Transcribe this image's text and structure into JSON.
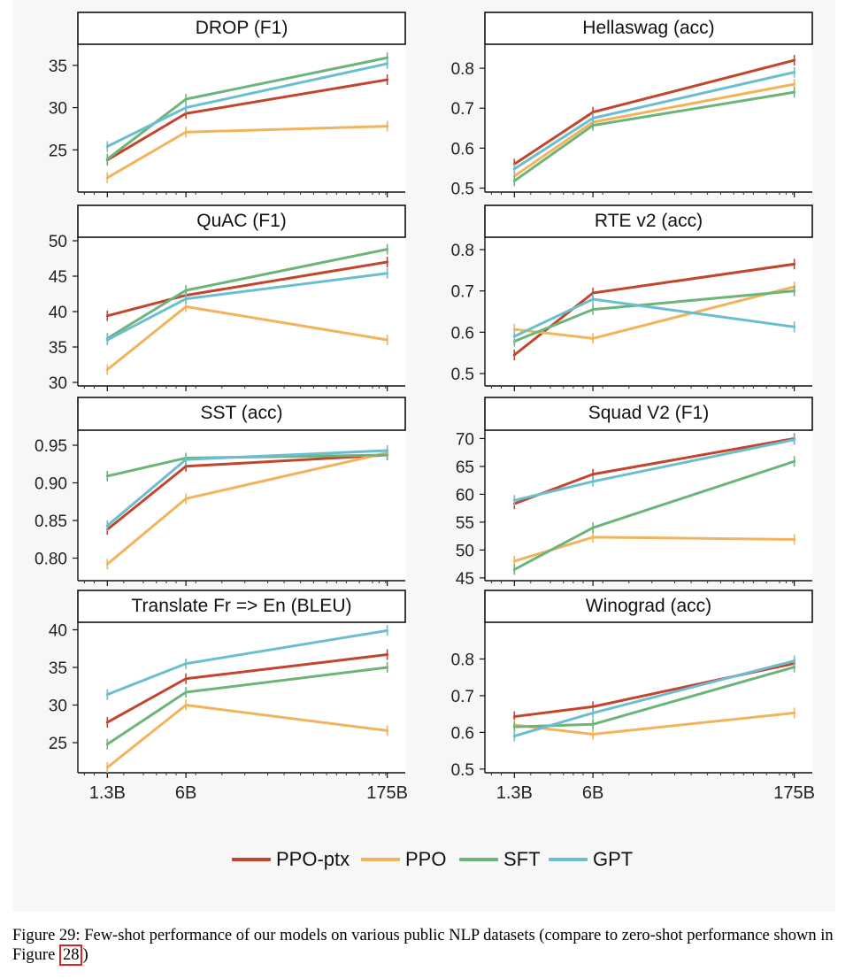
{
  "chart_data": [
    {
      "type": "line",
      "title": "DROP (F1)",
      "x": [
        "1.3B",
        "6B",
        "175B"
      ],
      "ylim": [
        20,
        37.5
      ],
      "yticks": [
        25,
        30,
        35
      ],
      "ytick_labels": [
        "25",
        "30",
        "35"
      ],
      "show_x_labels": false,
      "series": [
        {
          "name": "PPO-ptx",
          "values": [
            23.8,
            29.3,
            33.3
          ]
        },
        {
          "name": "PPO",
          "values": [
            21.7,
            27.1,
            27.8
          ]
        },
        {
          "name": "SFT",
          "values": [
            23.9,
            31.0,
            35.9
          ]
        },
        {
          "name": "GPT",
          "values": [
            25.4,
            30.0,
            35.2
          ]
        }
      ]
    },
    {
      "type": "line",
      "title": "Hellaswag (acc)",
      "x": [
        "1.3B",
        "6B",
        "175B"
      ],
      "ylim": [
        0.49,
        0.86
      ],
      "yticks": [
        0.5,
        0.6,
        0.7,
        0.8
      ],
      "ytick_labels": [
        "0.5",
        "0.6",
        "0.7",
        "0.8"
      ],
      "show_x_labels": false,
      "series": [
        {
          "name": "PPO-ptx",
          "values": [
            0.56,
            0.69,
            0.82
          ]
        },
        {
          "name": "PPO",
          "values": [
            0.53,
            0.665,
            0.76
          ]
        },
        {
          "name": "SFT",
          "values": [
            0.518,
            0.657,
            0.74
          ]
        },
        {
          "name": "GPT",
          "values": [
            0.548,
            0.675,
            0.79
          ]
        }
      ]
    },
    {
      "type": "line",
      "title": "QuAC (F1)",
      "x": [
        "1.3B",
        "6B",
        "175B"
      ],
      "ylim": [
        29.5,
        50.5
      ],
      "yticks": [
        30,
        35,
        40,
        45,
        50
      ],
      "ytick_labels": [
        "30",
        "35",
        "40",
        "45",
        "50"
      ],
      "show_x_labels": false,
      "series": [
        {
          "name": "PPO-ptx",
          "values": [
            39.4,
            42.3,
            47.0
          ]
        },
        {
          "name": "PPO",
          "values": [
            31.8,
            40.7,
            36.0
          ]
        },
        {
          "name": "SFT",
          "values": [
            36.2,
            43.0,
            48.8
          ]
        },
        {
          "name": "GPT",
          "values": [
            36.0,
            41.8,
            45.4
          ]
        }
      ]
    },
    {
      "type": "line",
      "title": "RTE v2 (acc)",
      "x": [
        "1.3B",
        "6B",
        "175B"
      ],
      "ylim": [
        0.47,
        0.83
      ],
      "yticks": [
        0.5,
        0.6,
        0.7,
        0.8
      ],
      "ytick_labels": [
        "0.5",
        "0.6",
        "0.7",
        "0.8"
      ],
      "show_x_labels": false,
      "series": [
        {
          "name": "PPO-ptx",
          "values": [
            0.545,
            0.695,
            0.765
          ]
        },
        {
          "name": "PPO",
          "values": [
            0.607,
            0.585,
            0.71
          ]
        },
        {
          "name": "SFT",
          "values": [
            0.578,
            0.655,
            0.7
          ]
        },
        {
          "name": "GPT",
          "values": [
            0.59,
            0.68,
            0.613
          ]
        }
      ]
    },
    {
      "type": "line",
      "title": "SST (acc)",
      "x": [
        "1.3B",
        "6B",
        "175B"
      ],
      "ylim": [
        0.77,
        0.97
      ],
      "yticks": [
        0.8,
        0.85,
        0.9,
        0.95
      ],
      "ytick_labels": [
        "0.80",
        "0.85",
        "0.90",
        "0.95"
      ],
      "show_x_labels": false,
      "series": [
        {
          "name": "PPO-ptx",
          "values": [
            0.838,
            0.922,
            0.937
          ]
        },
        {
          "name": "PPO",
          "values": [
            0.792,
            0.879,
            0.94
          ]
        },
        {
          "name": "SFT",
          "values": [
            0.909,
            0.933,
            0.937
          ]
        },
        {
          "name": "GPT",
          "values": [
            0.843,
            0.931,
            0.943
          ]
        }
      ]
    },
    {
      "type": "line",
      "title": "Squad V2 (F1)",
      "x": [
        "1.3B",
        "6B",
        "175B"
      ],
      "ylim": [
        44.5,
        71.5
      ],
      "yticks": [
        45,
        50,
        55,
        60,
        65,
        70
      ],
      "ytick_labels": [
        "45",
        "50",
        "55",
        "60",
        "65",
        "70"
      ],
      "show_x_labels": false,
      "series": [
        {
          "name": "PPO-ptx",
          "values": [
            58.3,
            63.6,
            70.0
          ]
        },
        {
          "name": "PPO",
          "values": [
            48.0,
            52.3,
            51.9
          ]
        },
        {
          "name": "SFT",
          "values": [
            46.5,
            54.0,
            65.9
          ]
        },
        {
          "name": "GPT",
          "values": [
            58.9,
            62.3,
            69.8
          ]
        }
      ]
    },
    {
      "type": "line",
      "title": "Translate Fr => En (BLEU)",
      "x": [
        "1.3B",
        "6B",
        "175B"
      ],
      "ylim": [
        21,
        41
      ],
      "yticks": [
        25,
        30,
        35,
        40
      ],
      "ytick_labels": [
        "25",
        "30",
        "35",
        "40"
      ],
      "show_x_labels": true,
      "series": [
        {
          "name": "PPO-ptx",
          "values": [
            27.7,
            33.5,
            36.7
          ]
        },
        {
          "name": "PPO",
          "values": [
            21.7,
            30.0,
            26.6
          ]
        },
        {
          "name": "SFT",
          "values": [
            24.8,
            31.7,
            35.0
          ]
        },
        {
          "name": "GPT",
          "values": [
            31.4,
            35.5,
            39.9
          ]
        }
      ]
    },
    {
      "type": "line",
      "title": "Winograd (acc)",
      "x": [
        "1.3B",
        "6B",
        "175B"
      ],
      "ylim": [
        0.49,
        0.9
      ],
      "yticks": [
        0.5,
        0.6,
        0.7,
        0.8
      ],
      "ytick_labels": [
        "0.5",
        "0.6",
        "0.7",
        "0.8"
      ],
      "show_x_labels": true,
      "series": [
        {
          "name": "PPO-ptx",
          "values": [
            0.643,
            0.67,
            0.788
          ]
        },
        {
          "name": "PPO",
          "values": [
            0.62,
            0.595,
            0.653
          ]
        },
        {
          "name": "SFT",
          "values": [
            0.615,
            0.622,
            0.778
          ]
        },
        {
          "name": "GPT",
          "values": [
            0.59,
            0.653,
            0.795
          ]
        }
      ]
    }
  ],
  "legend": [
    {
      "name": "PPO-ptx",
      "color": "#c2452c"
    },
    {
      "name": "PPO",
      "color": "#f2b35a"
    },
    {
      "name": "SFT",
      "color": "#6db47a"
    },
    {
      "name": "GPT",
      "color": "#6bbed0"
    }
  ],
  "x_tick_labels": [
    "1.3B",
    "6B",
    "175B"
  ],
  "caption": {
    "text": "Figure 29: Few-shot performance of our models on various public NLP datasets (compare to zero-shot performance shown in Figure ",
    "ref": "28",
    "end": ")"
  }
}
